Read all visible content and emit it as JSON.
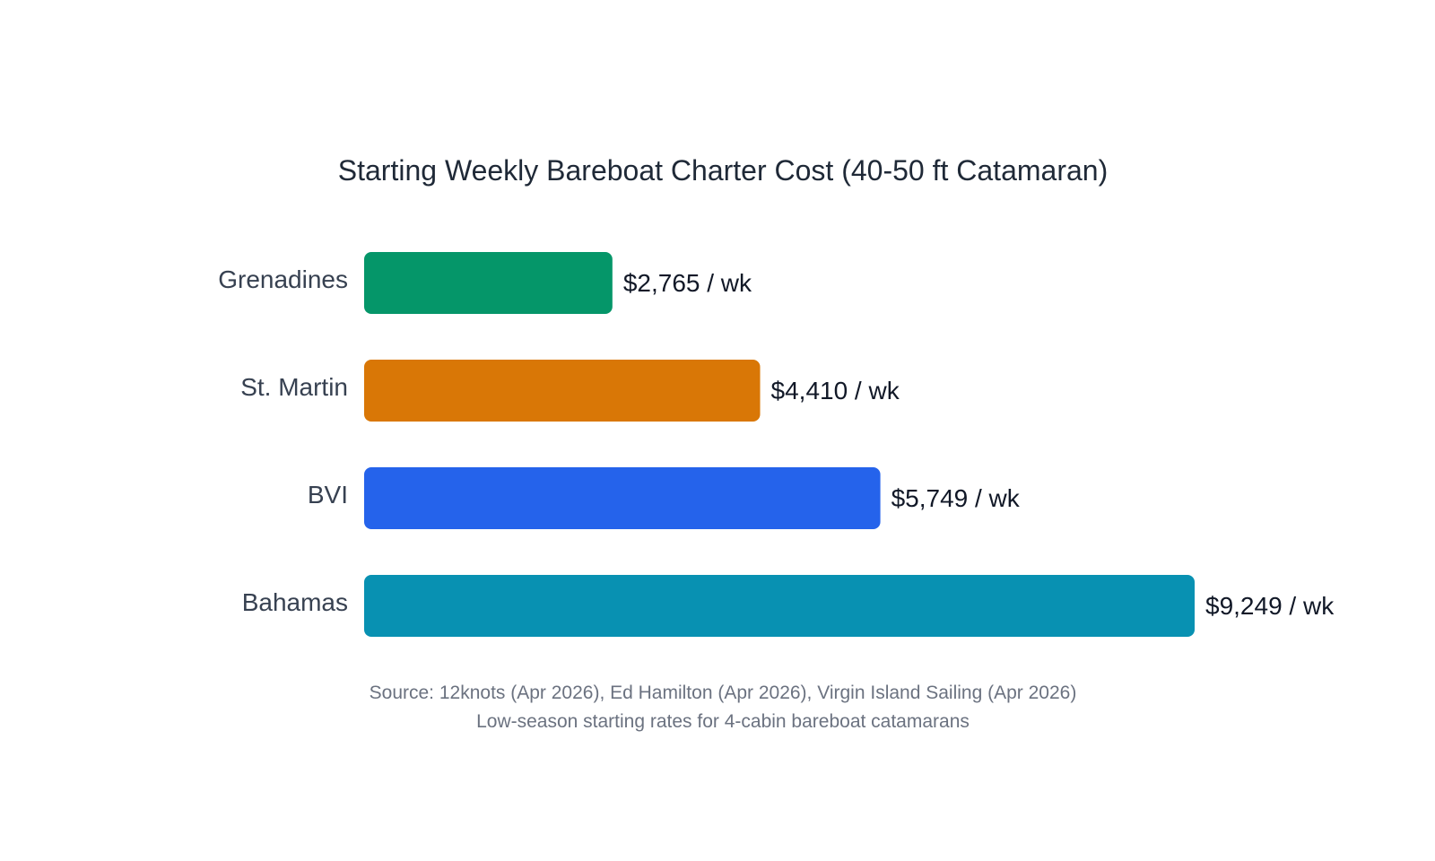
{
  "chart_data": {
    "type": "bar",
    "orientation": "horizontal",
    "title": "Starting Weekly Bareboat Charter Cost (40-50 ft Catamaran)",
    "categories": [
      "Grenadines",
      "St. Martin",
      "BVI",
      "Bahamas"
    ],
    "values": [
      2765,
      4410,
      5749,
      9249
    ],
    "value_labels": [
      "$2,765 / wk",
      "$4,410 / wk",
      "$5,749 / wk",
      "$9,249 / wk"
    ],
    "colors": [
      "#059669",
      "#d97706",
      "#2563eb",
      "#0891b2"
    ],
    "xlabel": "",
    "ylabel": "",
    "xlim": [
      0,
      9249
    ],
    "grid": false,
    "legend": "none"
  },
  "footnotes": {
    "source": "Source: 12knots (Apr 2026), Ed Hamilton (Apr 2026), Virgin Island Sailing (Apr 2026)",
    "note": "Low-season starting rates for 4-cabin bareboat catamarans"
  }
}
